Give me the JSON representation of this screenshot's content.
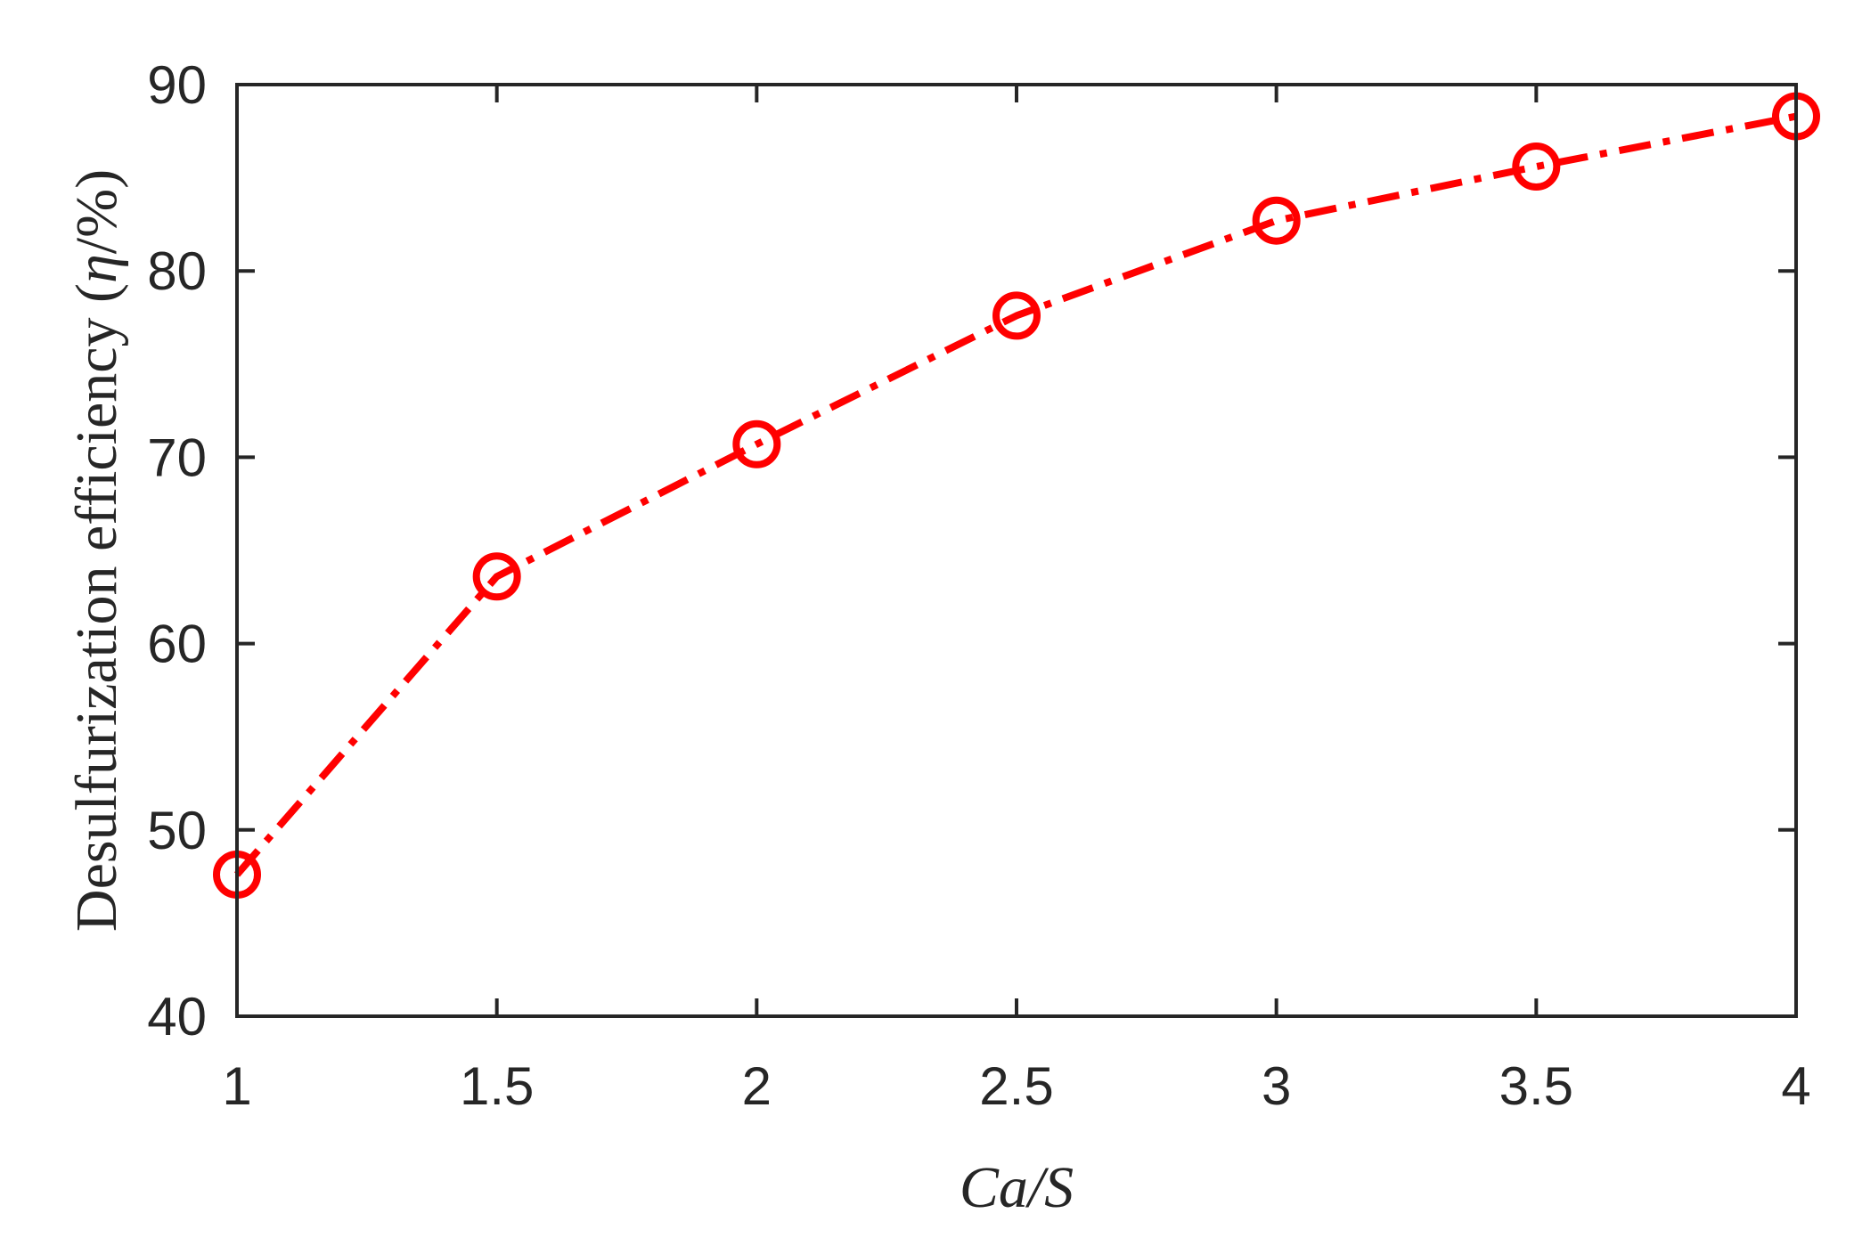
{
  "chart_data": {
    "type": "line",
    "xlabel": "Ca/S",
    "ylabel": "Desulfurization efficiency (η/%)",
    "ylabel_parts": {
      "prefix": "Desulfurization efficiency (",
      "symbol": "η",
      "suffix": "/%)"
    },
    "x_ticks": [
      "1",
      "1.5",
      "2",
      "2.5",
      "3",
      "3.5",
      "4"
    ],
    "y_ticks": [
      "40",
      "50",
      "60",
      "70",
      "80",
      "90"
    ],
    "xlim": [
      1,
      4
    ],
    "ylim": [
      40,
      90
    ],
    "grid": false,
    "series": [
      {
        "x": [
          1,
          1.5,
          2,
          2.5,
          3,
          3.5,
          4
        ],
        "values": [
          47.6,
          63.6,
          70.7,
          77.6,
          82.7,
          85.6,
          88.3
        ],
        "color": "#ff0000",
        "line_style": "dash-dot",
        "marker": "circle-open"
      }
    ]
  }
}
